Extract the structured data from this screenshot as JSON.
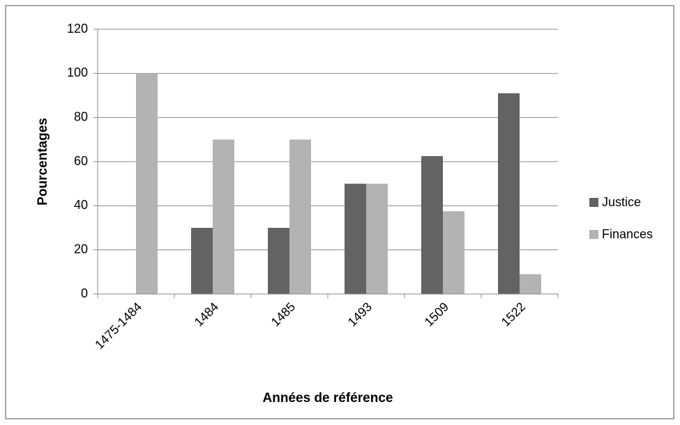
{
  "chart_data": {
    "type": "bar",
    "x_label": "Années de référence",
    "y_label": "Pourcentages",
    "categories": [
      "1475-1484",
      "1484",
      "1485",
      "1493",
      "1509",
      "1522"
    ],
    "series": [
      {
        "name": "Justice",
        "color": "#636363",
        "values": [
          0,
          30,
          30,
          50,
          62.5,
          91
        ]
      },
      {
        "name": "Finances",
        "color": "#b3b3b3",
        "values": [
          100,
          70,
          70,
          50,
          37.5,
          9
        ]
      }
    ],
    "ylim": [
      0,
      120
    ],
    "yticks": [
      0,
      20,
      40,
      60,
      80,
      100,
      120
    ],
    "grid": true,
    "legend": "right"
  }
}
